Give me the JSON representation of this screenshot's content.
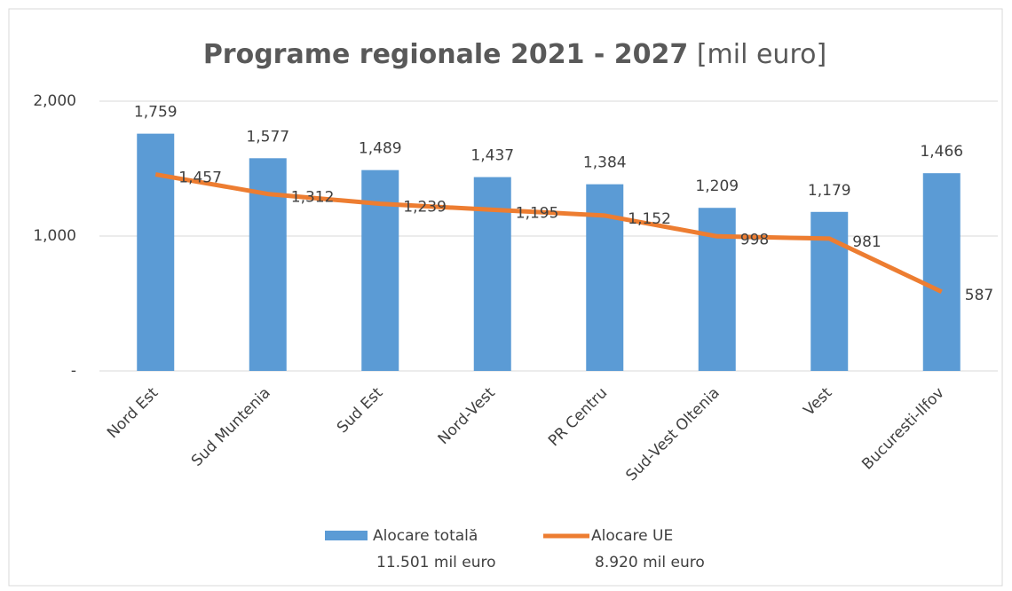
{
  "chart_data": {
    "type": "bar-line",
    "title": "Programe regionale 2021 - 2027",
    "title_unit": "[mil euro]",
    "categories": [
      "Nord Est",
      "Sud Muntenia",
      "Sud Est",
      "Nord-Vest",
      "PR Centru",
      "Sud-Vest Oltenia",
      "Vest",
      "Bucuresti-Ilfov"
    ],
    "series": [
      {
        "name": "Alocare totală",
        "type": "bar",
        "color": "#5b9bd5",
        "legend_detail": "11.501 mil euro",
        "values": [
          1759,
          1577,
          1489,
          1437,
          1384,
          1209,
          1179,
          1466
        ],
        "value_labels": [
          "1,759",
          "1,577",
          "1,489",
          "1,437",
          "1,384",
          "1,209",
          "1,179",
          "1,466"
        ]
      },
      {
        "name": "Alocare UE",
        "type": "line",
        "color": "#ed7d31",
        "legend_detail": "8.920 mil euro",
        "values": [
          1457,
          1312,
          1239,
          1195,
          1152,
          998,
          981,
          587
        ],
        "value_labels": [
          "1,457",
          "1,312",
          "1,239",
          "1,195",
          "1,152",
          "998",
          "981",
          "587"
        ]
      }
    ],
    "ylim": [
      0,
      2000
    ],
    "yticks": [
      {
        "value": 0,
        "label": "-"
      },
      {
        "value": 1000,
        "label": "1,000"
      },
      {
        "value": 2000,
        "label": "2,000"
      }
    ],
    "grid": true,
    "legend": "bottom"
  }
}
